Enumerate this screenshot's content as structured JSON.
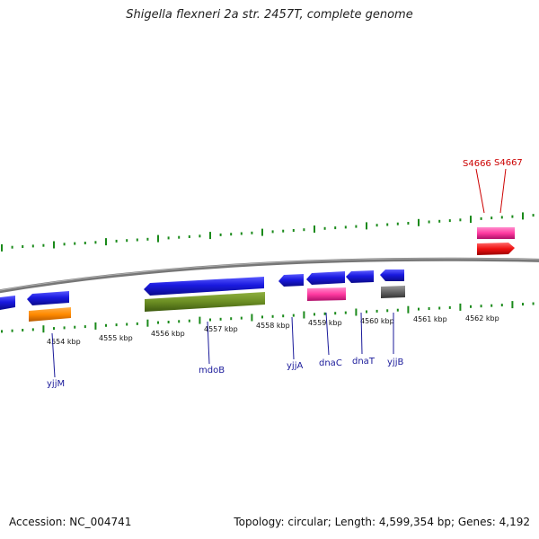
{
  "title": "Shigella flexneri 2a str. 2457T, complete genome",
  "footer": {
    "accession": "Accession: NC_004741",
    "topology": "Topology: circular; Length: 4,599,354 bp; Genes: 4,192"
  },
  "scale": {
    "tick_labels": [
      "4554 kbp",
      "4555 kbp",
      "4556 kbp",
      "4557 kbp",
      "4558 kbp",
      "4559 kbp",
      "4560 kbp",
      "4561 kbp",
      "4562 kbp"
    ]
  },
  "gene_labels": [
    "yjjM",
    "mdoB",
    "yjjA",
    "dnaC",
    "dnaT",
    "yjjB"
  ],
  "feature_labels": [
    "S4666",
    "S4667"
  ],
  "colors": {
    "backbone": "#888888",
    "tick": "#1a8a1a",
    "gene": "#1a1ae0",
    "gene_orange": "#ff8a00",
    "gene_olive": "#6b8e23",
    "gene_pink": "#ff3aa0",
    "gene_gray": "#666666",
    "gene_red": "#ee1111"
  }
}
